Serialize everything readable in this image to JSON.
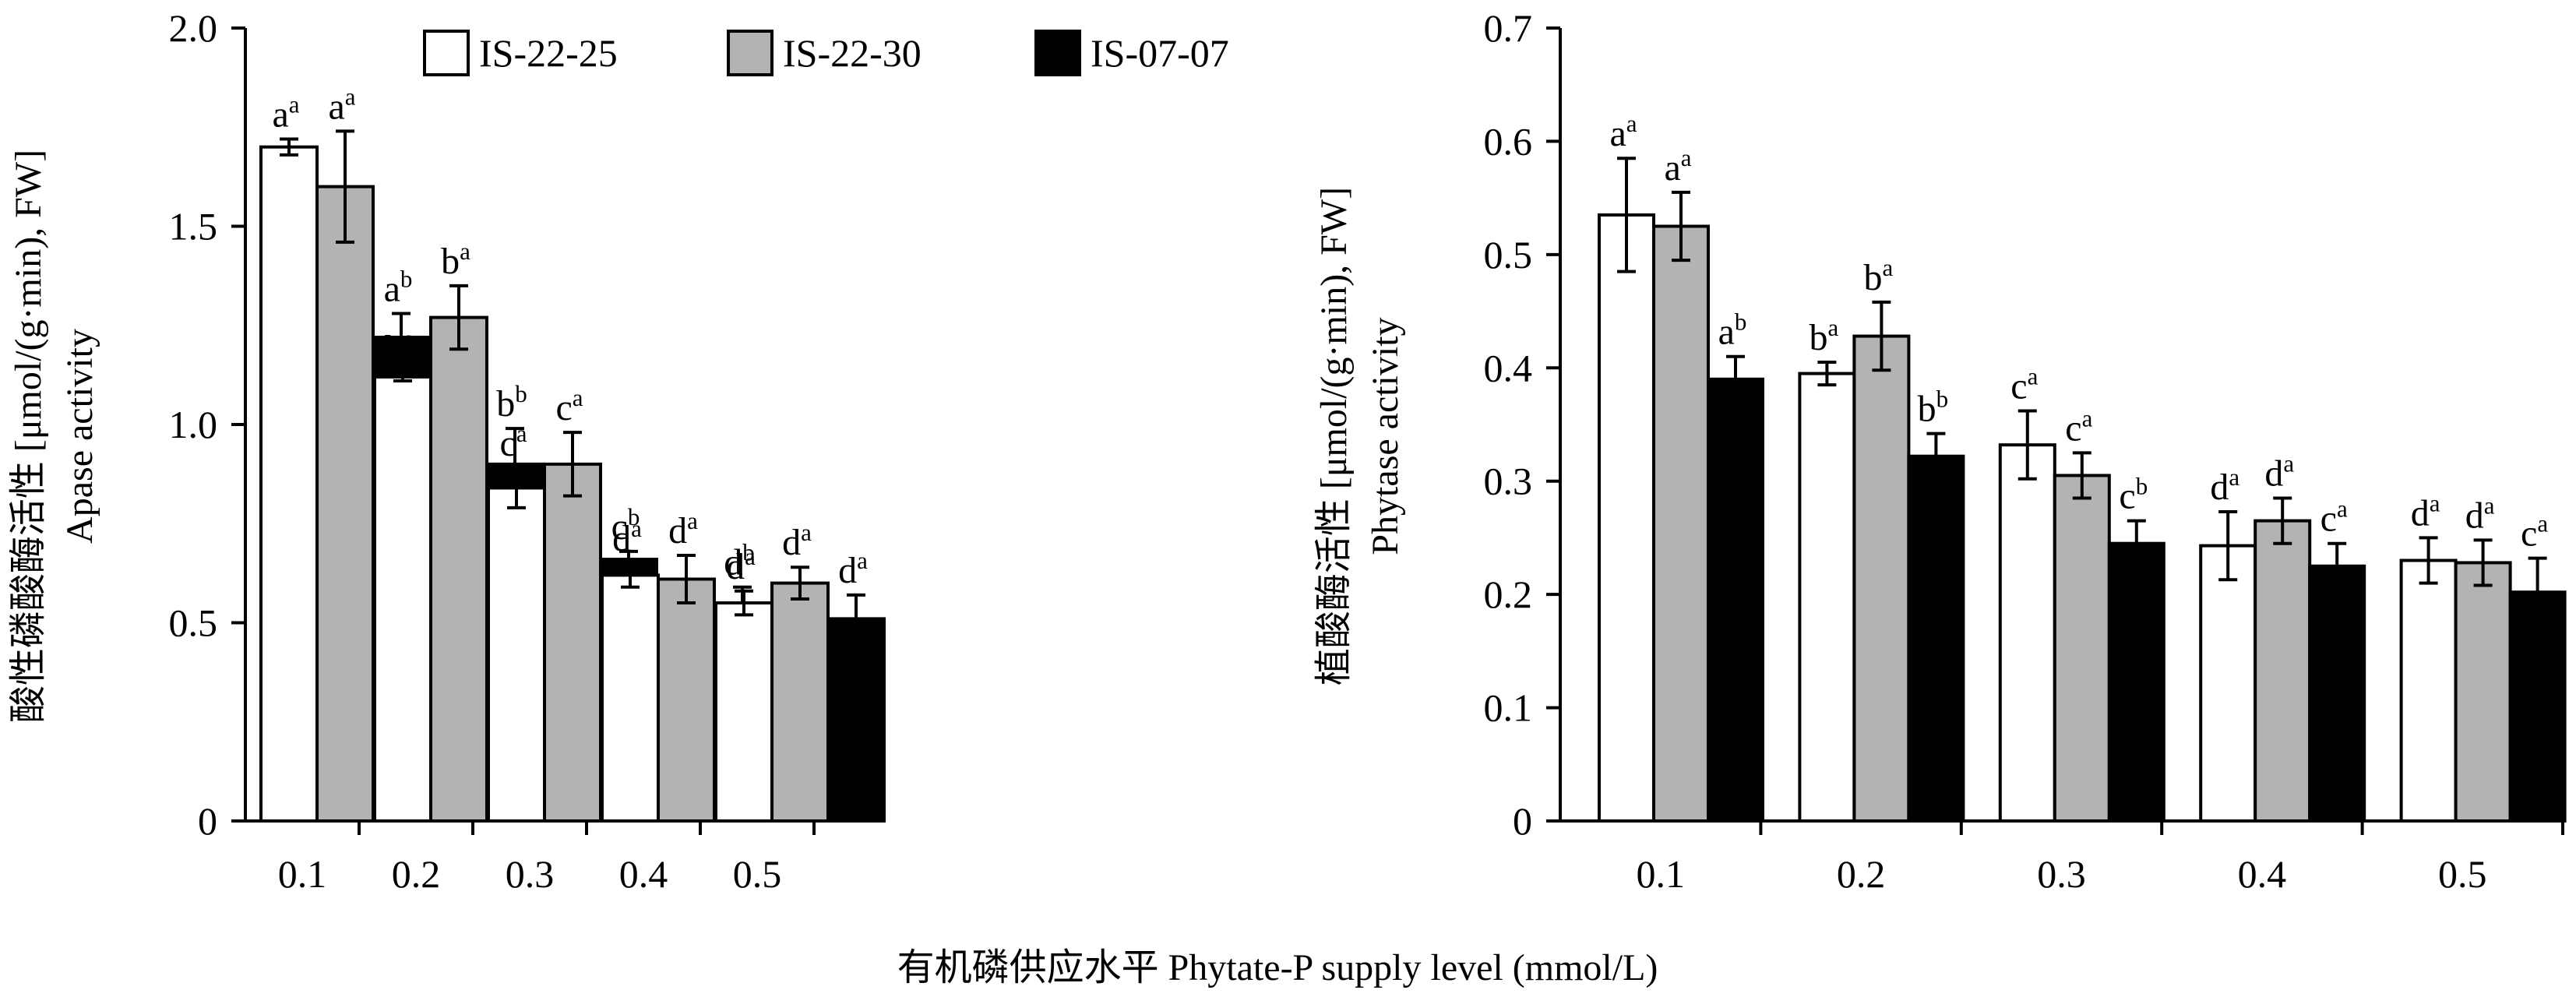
{
  "figure": {
    "xlabel": "有机磷供应水平 Phytate-P supply level (mmol/L)",
    "legend": [
      {
        "name": "IS-22-25",
        "color": "#ffffff"
      },
      {
        "name": "IS-22-30",
        "color": "#b3b3b3"
      },
      {
        "name": "IS-07-07",
        "color": "#000000"
      }
    ]
  },
  "chart_data": [
    {
      "type": "bar",
      "title": "",
      "xlabel": "有机磷供应水平 Phytate-P supply level (mmol/L)",
      "ylabel_lines": [
        "酸性磷酸酶活性 [μmol/(g·min), FW]",
        "Apase activity"
      ],
      "categories": [
        "0.1",
        "0.2",
        "0.3",
        "0.4",
        "0.5"
      ],
      "ylim": [
        0,
        2.0
      ],
      "yticks": [
        0,
        0.5,
        1.0,
        1.5,
        2.0
      ],
      "ytick_labels": [
        "0",
        "0.5",
        "1.0",
        "1.5",
        "2.0"
      ],
      "legend_position": "top",
      "grid": false,
      "series": [
        {
          "name": "IS-22-25",
          "values": [
            1.7,
            1.12,
            0.84,
            0.62,
            0.55
          ],
          "errors": [
            0.02,
            0.01,
            0.05,
            0.03,
            0.03
          ],
          "labels": [
            [
              "a",
              "a"
            ],
            [
              "b",
              "a"
            ],
            [
              "c",
              "a"
            ],
            [
              "d",
              "a"
            ],
            [
              "d",
              "a"
            ]
          ]
        },
        {
          "name": "IS-22-30",
          "values": [
            1.6,
            1.27,
            0.9,
            0.61,
            0.6
          ],
          "errors": [
            0.14,
            0.08,
            0.08,
            0.06,
            0.04
          ],
          "labels": [
            [
              "a",
              "a"
            ],
            [
              "b",
              "a"
            ],
            [
              "c",
              "a"
            ],
            [
              "d",
              "a"
            ],
            [
              "d",
              "a"
            ]
          ]
        },
        {
          "name": "IS-07-07",
          "values": [
            1.22,
            0.9,
            0.66,
            0.53,
            0.51
          ],
          "errors": [
            0.06,
            0.09,
            0.02,
            0.06,
            0.06
          ],
          "labels": [
            [
              "a",
              "b"
            ],
            [
              "b",
              "b"
            ],
            [
              "c",
              "b"
            ],
            [
              "d",
              "b"
            ],
            [
              "d",
              "a"
            ]
          ]
        }
      ]
    },
    {
      "type": "bar",
      "title": "",
      "xlabel": "有机磷供应水平 Phytate-P supply level (mmol/L)",
      "ylabel_lines": [
        "植酸酶活性 [μmol/(g·min), FW]",
        "Phytase activity"
      ],
      "categories": [
        "0.1",
        "0.2",
        "0.3",
        "0.4",
        "0.5"
      ],
      "ylim": [
        0,
        0.7
      ],
      "yticks": [
        0,
        0.1,
        0.2,
        0.3,
        0.4,
        0.5,
        0.6,
        0.7
      ],
      "ytick_labels": [
        "0",
        "0.1",
        "0.2",
        "0.3",
        "0.4",
        "0.5",
        "0.6",
        "0.7"
      ],
      "grid": false,
      "series": [
        {
          "name": "IS-22-25",
          "values": [
            0.535,
            0.395,
            0.332,
            0.243,
            0.23
          ],
          "errors": [
            0.05,
            0.01,
            0.03,
            0.03,
            0.02
          ],
          "labels": [
            [
              "a",
              "a"
            ],
            [
              "b",
              "a"
            ],
            [
              "c",
              "a"
            ],
            [
              "d",
              "a"
            ],
            [
              "d",
              "a"
            ]
          ]
        },
        {
          "name": "IS-22-30",
          "values": [
            0.525,
            0.428,
            0.305,
            0.265,
            0.228
          ],
          "errors": [
            0.03,
            0.03,
            0.02,
            0.02,
            0.02
          ],
          "labels": [
            [
              "a",
              "a"
            ],
            [
              "b",
              "a"
            ],
            [
              "c",
              "a"
            ],
            [
              "d",
              "a"
            ],
            [
              "d",
              "a"
            ]
          ]
        },
        {
          "name": "IS-07-07",
          "values": [
            0.39,
            0.322,
            0.245,
            0.225,
            0.202
          ],
          "errors": [
            0.02,
            0.02,
            0.02,
            0.02,
            0.03
          ],
          "labels": [
            [
              "a",
              "b"
            ],
            [
              "b",
              "b"
            ],
            [
              "c",
              "b"
            ],
            [
              "c",
              "a"
            ],
            [
              "c",
              "a"
            ]
          ]
        }
      ]
    }
  ]
}
